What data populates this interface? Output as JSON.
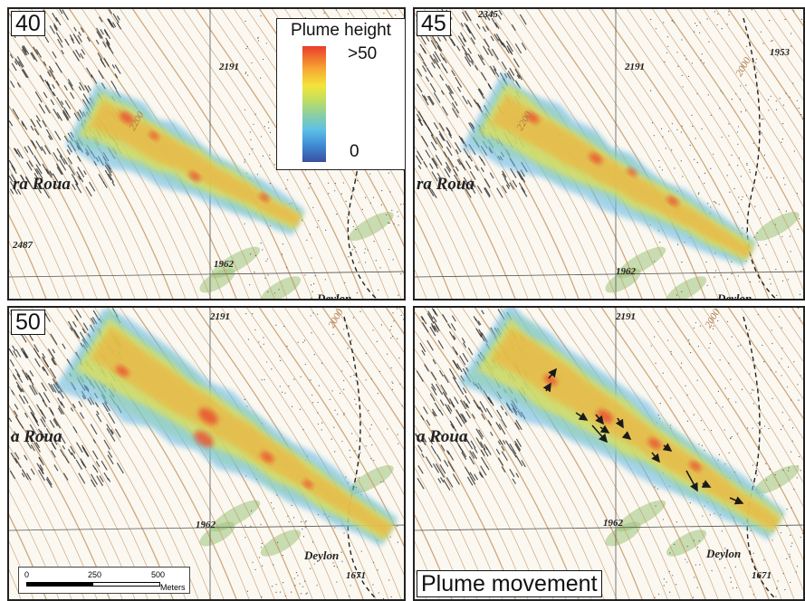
{
  "panels": [
    {
      "id": "p40",
      "label": "40"
    },
    {
      "id": "p45",
      "label": "45"
    },
    {
      "id": "p50",
      "label": "50"
    },
    {
      "id": "pmv",
      "label": "",
      "caption": "Plume movement"
    }
  ],
  "legend": {
    "title": "Plume height",
    "max_label": ">50",
    "min_label": "0",
    "colors": [
      "#3a4ea0",
      "#3f8ed6",
      "#5fc0e6",
      "#8fd09a",
      "#c8e05a",
      "#f3e43a",
      "#f7a933",
      "#ea3b2c"
    ]
  },
  "map_labels": {
    "place_roua_a": "ra Roua",
    "place_roua_b": "a Roua",
    "place_deylon": "Deylon",
    "elev_2191": "2191",
    "elev_2345": "2345",
    "elev_1962": "1962",
    "elev_1953": "1953",
    "elev_1671": "1671",
    "elev_2487": "2487",
    "contour_2000": "2000",
    "contour_2200": "2200"
  },
  "scale_bar": {
    "ticks": [
      "0",
      "250",
      "500"
    ],
    "unit": "Meters"
  },
  "colors": {
    "contour": "#c79a6a",
    "rock": "#2a2a2a",
    "vegetation": "#9cc47a",
    "plume_high": "#ea3b2c",
    "plume_low": "#5fb6e6",
    "arrow": "#1a1a1a"
  }
}
